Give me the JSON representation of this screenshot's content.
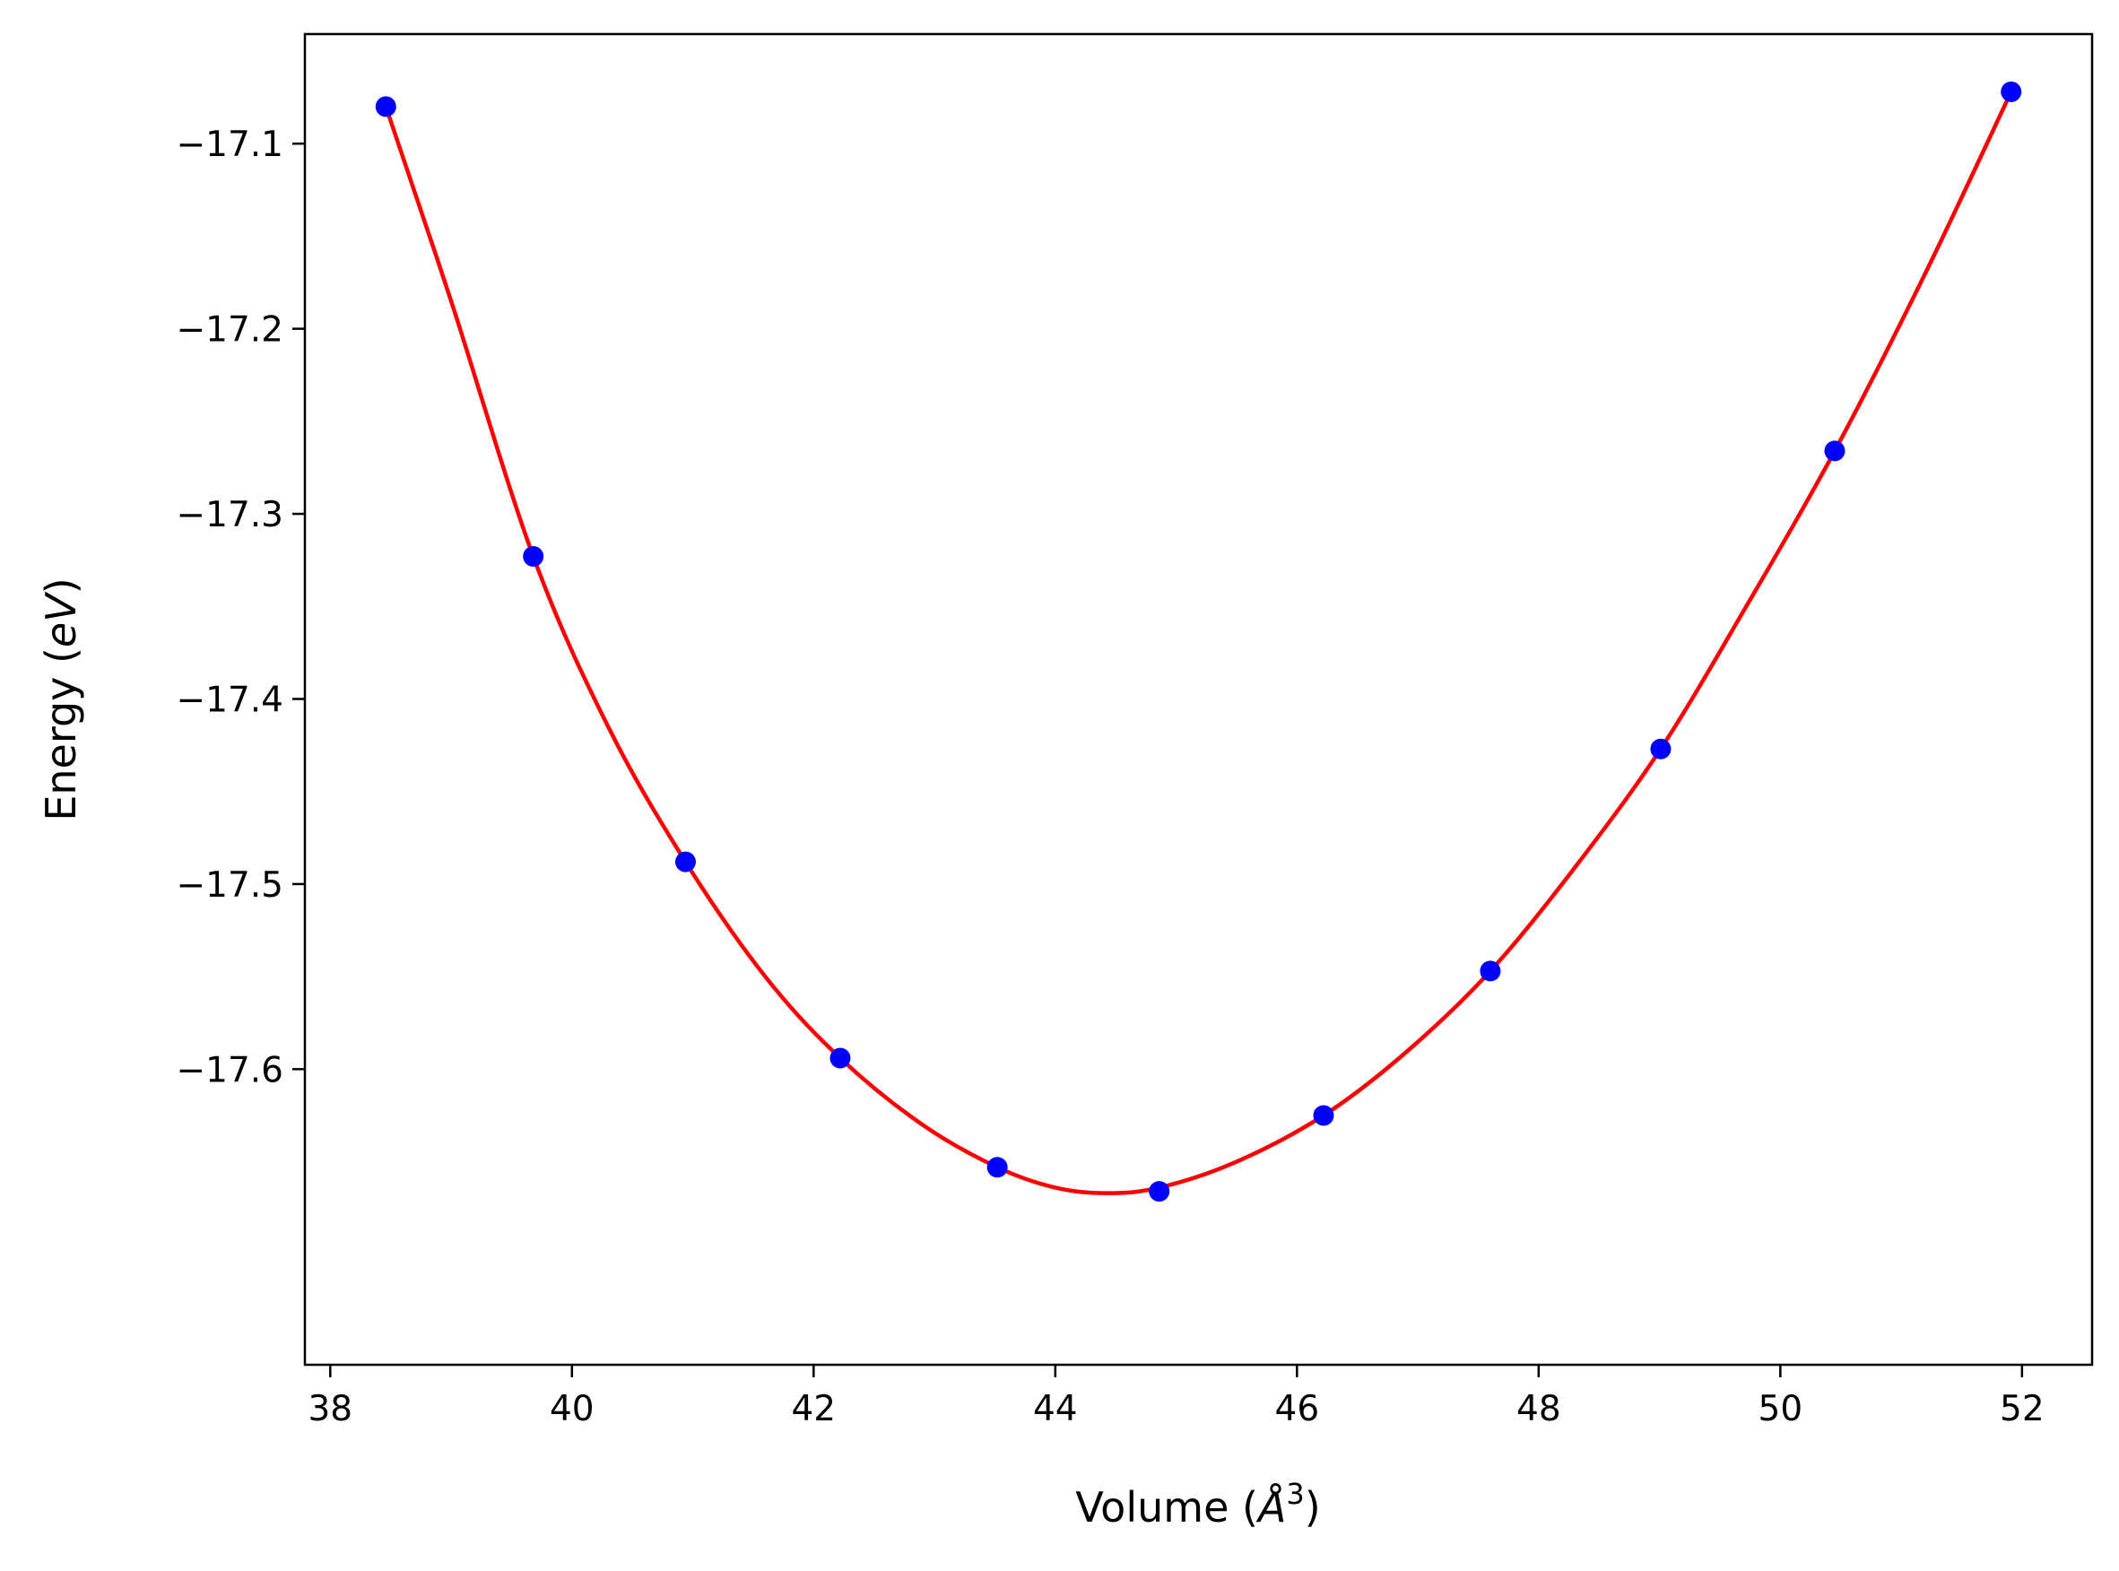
{
  "chart_data": {
    "type": "line",
    "title": "",
    "xlabel": "Volume (",
    "xlabel_symbol": "Å",
    "xlabel_exponent": "3",
    "xlabel_close": ")",
    "ylabel": "Energy (",
    "ylabel_unit": "eV",
    "ylabel_close": ")",
    "xlim": [
      37.79,
      52.58
    ],
    "ylim": [
      -17.7597,
      -17.0408
    ],
    "xticks": [
      38,
      40,
      42,
      44,
      46,
      48,
      50,
      52
    ],
    "xtick_labels": [
      "38",
      "40",
      "42",
      "44",
      "46",
      "48",
      "50",
      "52"
    ],
    "yticks": [
      -17.1,
      -17.2,
      -17.3,
      -17.4,
      -17.5,
      -17.6
    ],
    "ytick_labels": [
      "−17.1",
      "−17.2",
      "−17.3",
      "−17.4",
      "−17.5",
      "−17.6"
    ],
    "grid": false,
    "series": [
      {
        "kind": "scatter",
        "color": "#0000ff",
        "points": [
          {
            "x": 38.46,
            "y": -17.08
          },
          {
            "x": 39.68,
            "y": -17.323
          },
          {
            "x": 40.94,
            "y": -17.488
          },
          {
            "x": 42.22,
            "y": -17.594
          },
          {
            "x": 43.52,
            "y": -17.653
          },
          {
            "x": 44.86,
            "y": -17.666
          },
          {
            "x": 46.22,
            "y": -17.625
          },
          {
            "x": 47.6,
            "y": -17.547
          },
          {
            "x": 49.01,
            "y": -17.427
          },
          {
            "x": 50.45,
            "y": -17.266
          },
          {
            "x": 51.91,
            "y": -17.072
          }
        ]
      },
      {
        "kind": "line",
        "color": "#ff0000",
        "points": [
          {
            "x": 38.46,
            "y": -17.08
          },
          {
            "x": 39.0,
            "y": -17.185
          },
          {
            "x": 39.68,
            "y": -17.323
          },
          {
            "x": 40.3,
            "y": -17.415
          },
          {
            "x": 40.94,
            "y": -17.488
          },
          {
            "x": 41.6,
            "y": -17.55
          },
          {
            "x": 42.22,
            "y": -17.594
          },
          {
            "x": 42.9,
            "y": -17.63
          },
          {
            "x": 43.52,
            "y": -17.653
          },
          {
            "x": 44.0,
            "y": -17.664
          },
          {
            "x": 44.42,
            "y": -17.667
          },
          {
            "x": 44.86,
            "y": -17.664
          },
          {
            "x": 45.5,
            "y": -17.65
          },
          {
            "x": 46.22,
            "y": -17.625
          },
          {
            "x": 46.9,
            "y": -17.591
          },
          {
            "x": 47.6,
            "y": -17.547
          },
          {
            "x": 48.3,
            "y": -17.491
          },
          {
            "x": 49.01,
            "y": -17.427
          },
          {
            "x": 49.7,
            "y": -17.352
          },
          {
            "x": 50.45,
            "y": -17.266
          },
          {
            "x": 51.2,
            "y": -17.17
          },
          {
            "x": 51.91,
            "y": -17.072
          }
        ]
      }
    ]
  }
}
